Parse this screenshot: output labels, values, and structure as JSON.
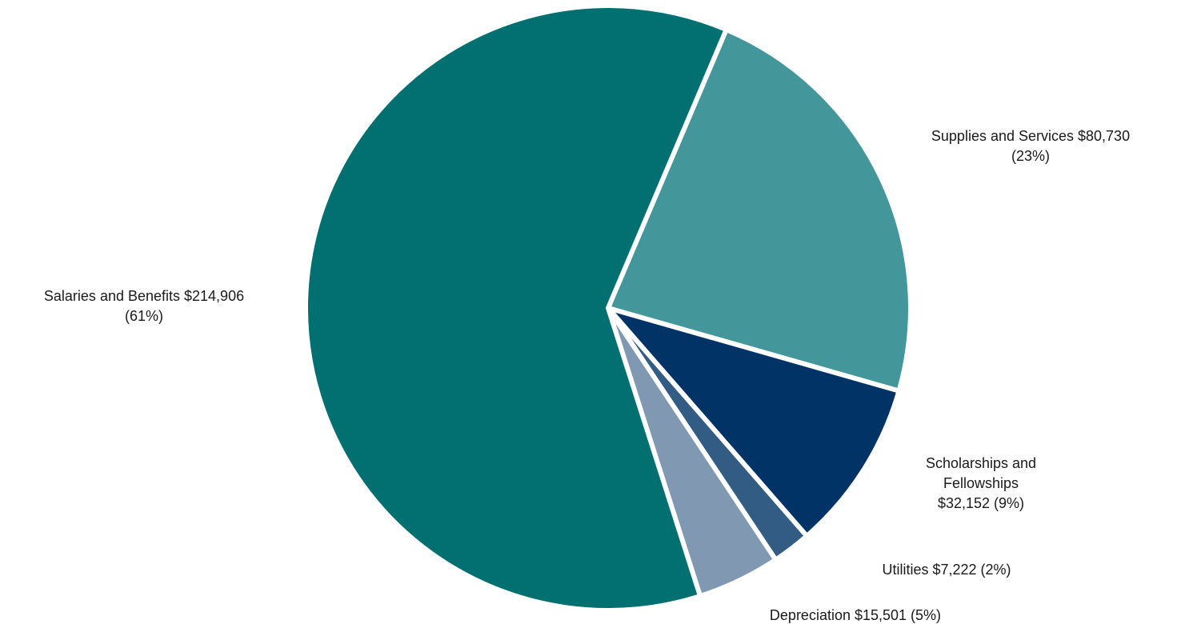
{
  "chart_data": {
    "type": "pie",
    "title": "",
    "slices": [
      {
        "name": "Supplies and Services",
        "value": 80730,
        "percent": 23,
        "color": "#43979A",
        "label_lines": [
          "Supplies and Services $80,730",
          "(23%)"
        ]
      },
      {
        "name": "Scholarships and Fellowships",
        "value": 32152,
        "percent": 9,
        "color": "#013366",
        "label_lines": [
          "Scholarships and",
          "Fellowships",
          "$32,152 (9%)"
        ]
      },
      {
        "name": "Utilities",
        "value": 7222,
        "percent": 2,
        "color": "#335C85",
        "label_lines": [
          "Utilities $7,222 (2%)"
        ]
      },
      {
        "name": "Depreciation",
        "value": 15501,
        "percent": 5,
        "color": "#8098B2",
        "label_lines": [
          "Depreciation $15,501 (5%)"
        ]
      },
      {
        "name": "Salaries and Benefits",
        "value": 214906,
        "percent": 61,
        "color": "#027070",
        "label_lines": [
          "Salaries and Benefits $214,906",
          "(61%)"
        ]
      }
    ],
    "legend": "none"
  }
}
